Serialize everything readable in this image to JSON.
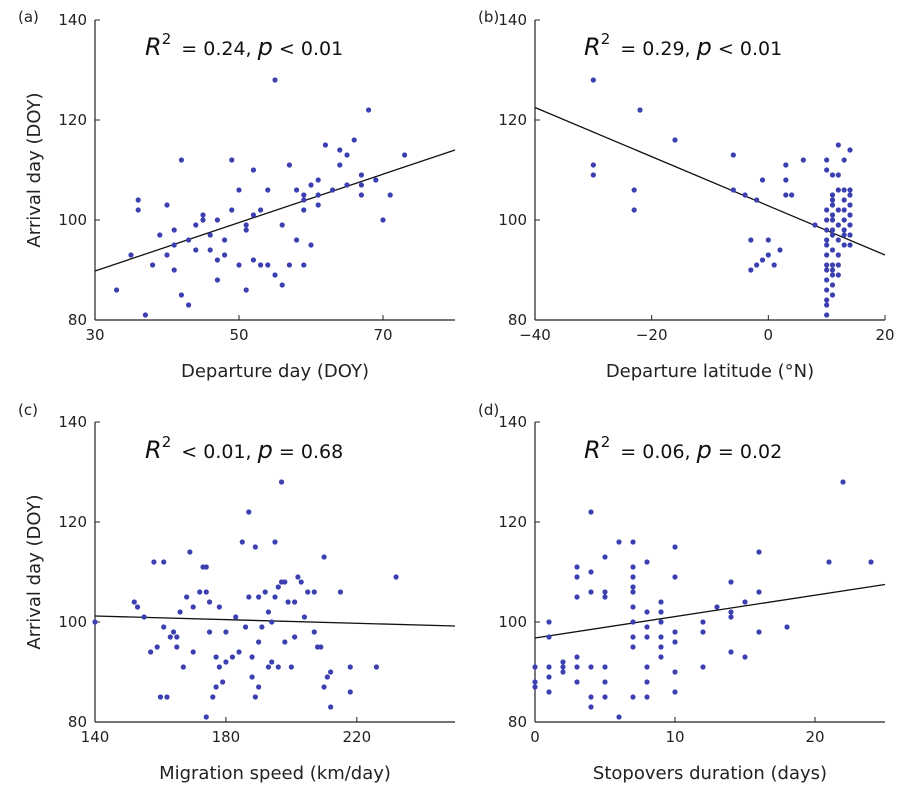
{
  "chart_data": [
    {
      "type": "scatter",
      "panel_label": "(a)",
      "xlabel": "Departure day (DOY)",
      "ylabel": "Arrival day (DOY)",
      "xlim": [
        30,
        80
      ],
      "ylim": [
        80,
        140
      ],
      "xticks": [
        30,
        50,
        70
      ],
      "yticks": [
        80,
        100,
        120,
        140
      ],
      "annotation": {
        "r2_text": "= 0.24, ",
        "p_text": "< 0.01"
      },
      "fit_line": {
        "x": [
          30,
          80
        ],
        "y": [
          89.8,
          114.0
        ]
      },
      "points": [
        [
          33,
          86
        ],
        [
          35,
          93
        ],
        [
          36,
          102
        ],
        [
          36,
          104
        ],
        [
          37,
          81
        ],
        [
          38,
          91
        ],
        [
          39,
          97
        ],
        [
          40,
          93
        ],
        [
          40,
          103
        ],
        [
          41,
          95
        ],
        [
          41,
          98
        ],
        [
          41,
          90
        ],
        [
          42,
          85
        ],
        [
          42,
          112
        ],
        [
          43,
          83
        ],
        [
          43,
          96
        ],
        [
          44,
          94
        ],
        [
          44,
          99
        ],
        [
          45,
          100
        ],
        [
          45,
          101
        ],
        [
          46,
          97
        ],
        [
          46,
          94
        ],
        [
          47,
          92
        ],
        [
          47,
          88
        ],
        [
          47,
          100
        ],
        [
          48,
          96
        ],
        [
          48,
          93
        ],
        [
          49,
          112
        ],
        [
          49,
          102
        ],
        [
          50,
          91
        ],
        [
          50,
          106
        ],
        [
          51,
          98
        ],
        [
          51,
          99
        ],
        [
          51,
          86
        ],
        [
          52,
          92
        ],
        [
          52,
          101
        ],
        [
          52,
          110
        ],
        [
          53,
          91
        ],
        [
          53,
          102
        ],
        [
          54,
          91
        ],
        [
          54,
          106
        ],
        [
          55,
          128
        ],
        [
          55,
          89
        ],
        [
          56,
          87
        ],
        [
          56,
          99
        ],
        [
          57,
          111
        ],
        [
          57,
          91
        ],
        [
          58,
          96
        ],
        [
          58,
          106
        ],
        [
          59,
          105
        ],
        [
          59,
          104
        ],
        [
          59,
          102
        ],
        [
          59,
          91
        ],
        [
          60,
          95
        ],
        [
          60,
          107
        ],
        [
          61,
          103
        ],
        [
          61,
          108
        ],
        [
          61,
          105
        ],
        [
          62,
          115
        ],
        [
          63,
          106
        ],
        [
          64,
          111
        ],
        [
          64,
          114
        ],
        [
          65,
          107
        ],
        [
          65,
          113
        ],
        [
          66,
          116
        ],
        [
          67,
          107
        ],
        [
          67,
          105
        ],
        [
          67,
          109
        ],
        [
          68,
          122
        ],
        [
          69,
          108
        ],
        [
          70,
          100
        ],
        [
          71,
          105
        ],
        [
          73,
          113
        ]
      ]
    },
    {
      "type": "scatter",
      "panel_label": "(b)",
      "xlabel": "Departure latitude (°N)",
      "ylabel": "",
      "xlim": [
        -40,
        20
      ],
      "ylim": [
        80,
        140
      ],
      "xticks": [
        -40,
        -20,
        0,
        20
      ],
      "xtick_labels": [
        "−40",
        "−20",
        "0",
        "20"
      ],
      "yticks": [
        80,
        100,
        120,
        140
      ],
      "annotation": {
        "r2_text": "= 0.29, ",
        "p_text": "< 0.01"
      },
      "fit_line": {
        "x": [
          -40,
          20
        ],
        "y": [
          122.5,
          93.0
        ]
      },
      "points": [
        [
          -30,
          128
        ],
        [
          -30,
          111
        ],
        [
          -30,
          109
        ],
        [
          -22,
          122
        ],
        [
          -23,
          106
        ],
        [
          -23,
          102
        ],
        [
          -16,
          116
        ],
        [
          -6,
          113
        ],
        [
          -6,
          106
        ],
        [
          -4,
          105
        ],
        [
          -3,
          90
        ],
        [
          -3,
          96
        ],
        [
          -2,
          104
        ],
        [
          -2,
          91
        ],
        [
          -1,
          108
        ],
        [
          -1,
          92
        ],
        [
          0,
          96
        ],
        [
          0,
          93
        ],
        [
          1,
          91
        ],
        [
          2,
          94
        ],
        [
          3,
          105
        ],
        [
          3,
          111
        ],
        [
          3,
          108
        ],
        [
          4,
          105
        ],
        [
          6,
          112
        ],
        [
          8,
          99
        ],
        [
          10,
          112
        ],
        [
          10,
          110
        ],
        [
          10,
          102
        ],
        [
          10,
          98
        ],
        [
          10,
          96
        ],
        [
          10,
          95
        ],
        [
          10,
          93
        ],
        [
          10,
          91
        ],
        [
          10,
          90
        ],
        [
          10,
          88
        ],
        [
          10,
          86
        ],
        [
          10,
          84
        ],
        [
          10,
          83
        ],
        [
          10,
          81
        ],
        [
          11,
          109
        ],
        [
          11,
          104
        ],
        [
          11,
          103
        ],
        [
          11,
          101
        ],
        [
          11,
          100
        ],
        [
          11,
          98
        ],
        [
          11,
          97
        ],
        [
          11,
          94
        ],
        [
          11,
          91
        ],
        [
          11,
          90
        ],
        [
          11,
          89
        ],
        [
          11,
          87
        ],
        [
          11,
          85
        ],
        [
          12,
          115
        ],
        [
          12,
          109
        ],
        [
          12,
          106
        ],
        [
          12,
          102
        ],
        [
          12,
          99
        ],
        [
          12,
          96
        ],
        [
          12,
          93
        ],
        [
          12,
          91
        ],
        [
          12,
          89
        ],
        [
          13,
          112
        ],
        [
          13,
          106
        ],
        [
          13,
          104
        ],
        [
          13,
          102
        ],
        [
          13,
          100
        ],
        [
          13,
          98
        ],
        [
          13,
          97
        ],
        [
          13,
          95
        ],
        [
          14,
          114
        ],
        [
          14,
          105
        ],
        [
          14,
          103
        ],
        [
          14,
          101
        ],
        [
          14,
          99
        ],
        [
          14,
          97
        ],
        [
          14,
          95
        ],
        [
          14,
          106
        ],
        [
          10,
          100
        ],
        [
          11,
          105
        ]
      ]
    },
    {
      "type": "scatter",
      "panel_label": "(c)",
      "xlabel": "Migration speed (km/day)",
      "ylabel": "Arrival day (DOY)",
      "xlim": [
        140,
        250
      ],
      "ylim": [
        80,
        140
      ],
      "xticks": [
        140,
        180,
        220
      ],
      "yticks": [
        80,
        100,
        120,
        140
      ],
      "annotation": {
        "r2_text": "< 0.01, ",
        "p_text": "= 0.68"
      },
      "fit_line": {
        "x": [
          140,
          250
        ],
        "y": [
          101.2,
          99.2
        ]
      },
      "points": [
        [
          140,
          100
        ],
        [
          152,
          104
        ],
        [
          153,
          103
        ],
        [
          155,
          101
        ],
        [
          157,
          94
        ],
        [
          158,
          112
        ],
        [
          159,
          95
        ],
        [
          160,
          85
        ],
        [
          161,
          112
        ],
        [
          161,
          99
        ],
        [
          162,
          85
        ],
        [
          163,
          97
        ],
        [
          164,
          98
        ],
        [
          165,
          97
        ],
        [
          165,
          95
        ],
        [
          166,
          102
        ],
        [
          167,
          91
        ],
        [
          168,
          105
        ],
        [
          169,
          114
        ],
        [
          170,
          103
        ],
        [
          170,
          94
        ],
        [
          172,
          106
        ],
        [
          173,
          111
        ],
        [
          174,
          111
        ],
        [
          174,
          106
        ],
        [
          174,
          81
        ],
        [
          175,
          98
        ],
        [
          175,
          104
        ],
        [
          176,
          85
        ],
        [
          177,
          93
        ],
        [
          177,
          87
        ],
        [
          178,
          103
        ],
        [
          178,
          91
        ],
        [
          179,
          88
        ],
        [
          180,
          92
        ],
        [
          180,
          98
        ],
        [
          182,
          93
        ],
        [
          183,
          101
        ],
        [
          184,
          94
        ],
        [
          185,
          116
        ],
        [
          186,
          99
        ],
        [
          187,
          122
        ],
        [
          187,
          105
        ],
        [
          188,
          93
        ],
        [
          188,
          89
        ],
        [
          189,
          85
        ],
        [
          189,
          115
        ],
        [
          190,
          105
        ],
        [
          190,
          96
        ],
        [
          190,
          87
        ],
        [
          191,
          99
        ],
        [
          192,
          106
        ],
        [
          193,
          102
        ],
        [
          193,
          91
        ],
        [
          194,
          92
        ],
        [
          194,
          100
        ],
        [
          195,
          116
        ],
        [
          195,
          105
        ],
        [
          196,
          107
        ],
        [
          196,
          91
        ],
        [
          197,
          128
        ],
        [
          197,
          108
        ],
        [
          198,
          96
        ],
        [
          198,
          108
        ],
        [
          199,
          104
        ],
        [
          200,
          91
        ],
        [
          201,
          97
        ],
        [
          201,
          104
        ],
        [
          202,
          109
        ],
        [
          203,
          108
        ],
        [
          204,
          101
        ],
        [
          205,
          106
        ],
        [
          207,
          98
        ],
        [
          207,
          106
        ],
        [
          208,
          95
        ],
        [
          209,
          95
        ],
        [
          210,
          113
        ],
        [
          210,
          87
        ],
        [
          211,
          89
        ],
        [
          212,
          83
        ],
        [
          212,
          90
        ],
        [
          215,
          106
        ],
        [
          218,
          91
        ],
        [
          218,
          86
        ],
        [
          226,
          91
        ],
        [
          232,
          109
        ]
      ]
    },
    {
      "type": "scatter",
      "panel_label": "(d)",
      "xlabel": "Stopovers duration (days)",
      "ylabel": "",
      "xlim": [
        0,
        25
      ],
      "ylim": [
        80,
        140
      ],
      "xticks": [
        0,
        10,
        20
      ],
      "yticks": [
        80,
        100,
        120,
        140
      ],
      "annotation": {
        "r2_text": "= 0.06, ",
        "p_text": "= 0.02"
      },
      "fit_line": {
        "x": [
          0,
          25
        ],
        "y": [
          96.8,
          107.5
        ]
      },
      "points": [
        [
          0,
          91
        ],
        [
          0,
          88
        ],
        [
          0,
          87
        ],
        [
          1,
          100
        ],
        [
          1,
          97
        ],
        [
          1,
          91
        ],
        [
          1,
          89
        ],
        [
          1,
          86
        ],
        [
          2,
          92
        ],
        [
          2,
          91
        ],
        [
          2,
          90
        ],
        [
          3,
          111
        ],
        [
          3,
          109
        ],
        [
          3,
          105
        ],
        [
          3,
          93
        ],
        [
          3,
          91
        ],
        [
          3,
          88
        ],
        [
          4,
          122
        ],
        [
          4,
          110
        ],
        [
          4,
          106
        ],
        [
          4,
          91
        ],
        [
          4,
          85
        ],
        [
          4,
          83
        ],
        [
          5,
          113
        ],
        [
          5,
          106
        ],
        [
          5,
          105
        ],
        [
          5,
          91
        ],
        [
          5,
          88
        ],
        [
          5,
          85
        ],
        [
          6,
          116
        ],
        [
          6,
          81
        ],
        [
          7,
          116
        ],
        [
          7,
          111
        ],
        [
          7,
          109
        ],
        [
          7,
          107
        ],
        [
          7,
          106
        ],
        [
          7,
          103
        ],
        [
          7,
          100
        ],
        [
          7,
          97
        ],
        [
          7,
          95
        ],
        [
          7,
          85
        ],
        [
          8,
          112
        ],
        [
          8,
          102
        ],
        [
          8,
          99
        ],
        [
          8,
          97
        ],
        [
          8,
          91
        ],
        [
          8,
          88
        ],
        [
          8,
          85
        ],
        [
          9,
          104
        ],
        [
          9,
          102
        ],
        [
          9,
          100
        ],
        [
          9,
          97
        ],
        [
          9,
          95
        ],
        [
          9,
          93
        ],
        [
          10,
          115
        ],
        [
          10,
          109
        ],
        [
          10,
          98
        ],
        [
          10,
          96
        ],
        [
          10,
          90
        ],
        [
          10,
          86
        ],
        [
          12,
          100
        ],
        [
          12,
          98
        ],
        [
          12,
          91
        ],
        [
          13,
          103
        ],
        [
          14,
          108
        ],
        [
          14,
          102
        ],
        [
          14,
          101
        ],
        [
          14,
          94
        ],
        [
          15,
          104
        ],
        [
          15,
          93
        ],
        [
          16,
          114
        ],
        [
          16,
          106
        ],
        [
          16,
          98
        ],
        [
          18,
          99
        ],
        [
          21,
          112
        ],
        [
          22,
          128
        ],
        [
          24,
          112
        ]
      ]
    }
  ]
}
